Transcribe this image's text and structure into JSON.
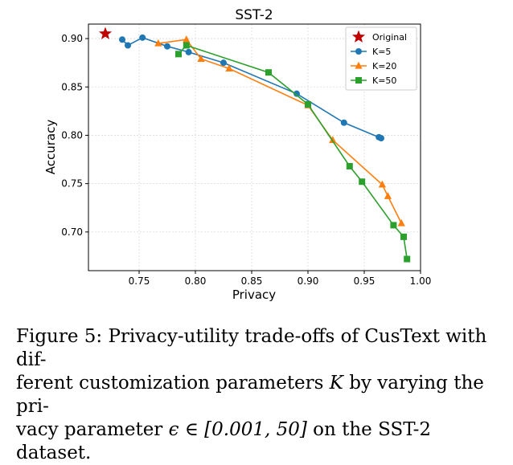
{
  "chart_data": {
    "type": "line",
    "title": "SST-2",
    "xlabel": "Privacy",
    "ylabel": "Accuracy",
    "xlim": [
      0.705,
      1.0
    ],
    "ylim": [
      0.66,
      0.915
    ],
    "xticks": [
      "0.75",
      "0.80",
      "0.85",
      "0.90",
      "0.95",
      "1.00"
    ],
    "xtick_values": [
      0.75,
      0.8,
      0.85,
      0.9,
      0.95,
      1.0
    ],
    "yticks": [
      "0.70",
      "0.75",
      "0.80",
      "0.85",
      "0.90"
    ],
    "ytick_values": [
      0.7,
      0.75,
      0.8,
      0.85,
      0.9
    ],
    "grid": true,
    "legend_position": "top-right",
    "original": {
      "name": "Original",
      "x": 0.72,
      "y": 0.905,
      "color": "#c00000",
      "marker": "star"
    },
    "series": [
      {
        "name": "K=5",
        "color": "#1f77b4",
        "marker": "circle",
        "x": [
          0.735,
          0.74,
          0.753,
          0.775,
          0.794,
          0.825,
          0.89,
          0.932,
          0.963,
          0.965
        ],
        "y": [
          0.899,
          0.893,
          0.901,
          0.892,
          0.886,
          0.875,
          0.843,
          0.813,
          0.798,
          0.797
        ]
      },
      {
        "name": "K=20",
        "color": "#ff7f0e",
        "marker": "triangle",
        "x": [
          0.767,
          0.792,
          0.805,
          0.83,
          0.9,
          0.922,
          0.966,
          0.971,
          0.983
        ],
        "y": [
          0.895,
          0.899,
          0.879,
          0.869,
          0.831,
          0.795,
          0.749,
          0.737,
          0.709
        ]
      },
      {
        "name": "K=50",
        "color": "#2ca02c",
        "marker": "square",
        "x": [
          0.785,
          0.792,
          0.865,
          0.9,
          0.937,
          0.948,
          0.976,
          0.985,
          0.988
        ],
        "y": [
          0.884,
          0.893,
          0.865,
          0.832,
          0.768,
          0.752,
          0.707,
          0.695,
          0.672
        ]
      }
    ]
  },
  "caption": {
    "line1": "Figure 5: Privacy-utility trade-offs of CusText with dif-",
    "line2_a": "ferent customization parameters ",
    "line2_k": "K",
    "line2_b": " by varying the pri-",
    "line3_a": "vacy parameter ",
    "line3_eps": "ϵ ∈ [0.001, 50]",
    "line3_b": " on the SST-2 dataset."
  }
}
